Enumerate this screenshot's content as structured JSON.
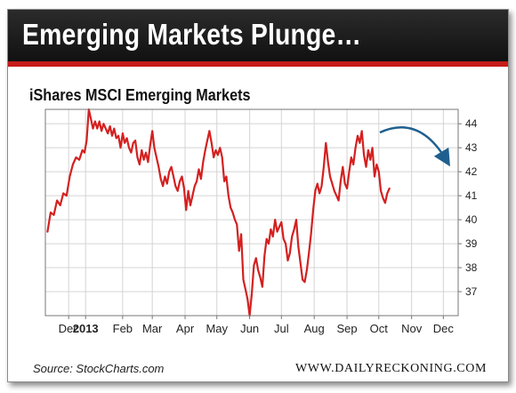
{
  "banner": {
    "title": "Emerging Markets Plunge…"
  },
  "chart_data": {
    "type": "line",
    "title": "iShares MSCI Emerging Markets",
    "x_tick_labels": [
      "Dec",
      "2013",
      "Feb",
      "Mar",
      "Apr",
      "May",
      "Jun",
      "Jul",
      "Aug",
      "Sep",
      "Oct",
      "Nov",
      "Dec"
    ],
    "x_tick_days": [
      -16,
      0,
      35,
      63,
      94,
      124,
      155,
      185,
      216,
      247,
      277,
      308,
      338
    ],
    "bold_tick_label": "2013",
    "y_ticks": [
      37,
      38,
      39,
      40,
      41,
      42,
      43,
      44
    ],
    "ylim": [
      36,
      44.6
    ],
    "xlim": [
      -38,
      352
    ],
    "grid": true,
    "series": [
      {
        "color": "#d42020",
        "points": [
          [
            -36,
            39.5
          ],
          [
            -33,
            40.3
          ],
          [
            -30,
            40.2
          ],
          [
            -27,
            40.8
          ],
          [
            -24,
            40.6
          ],
          [
            -21,
            41.1
          ],
          [
            -18,
            41.0
          ],
          [
            -15,
            41.8
          ],
          [
            -12,
            42.3
          ],
          [
            -9,
            42.6
          ],
          [
            -6,
            42.5
          ],
          [
            -3,
            42.9
          ],
          [
            -1,
            42.8
          ],
          [
            1,
            43.3
          ],
          [
            3,
            44.6
          ],
          [
            5,
            44.2
          ],
          [
            7,
            43.8
          ],
          [
            9,
            44.1
          ],
          [
            11,
            43.8
          ],
          [
            13,
            44.1
          ],
          [
            15,
            43.7
          ],
          [
            17,
            44.0
          ],
          [
            19,
            43.8
          ],
          [
            21,
            43.6
          ],
          [
            23,
            43.9
          ],
          [
            25,
            43.5
          ],
          [
            27,
            43.8
          ],
          [
            29,
            43.4
          ],
          [
            31,
            43.5
          ],
          [
            33,
            43.0
          ],
          [
            35,
            43.6
          ],
          [
            37,
            43.2
          ],
          [
            39,
            43.4
          ],
          [
            41,
            43.0
          ],
          [
            43,
            42.8
          ],
          [
            45,
            43.2
          ],
          [
            47,
            43.3
          ],
          [
            49,
            42.6
          ],
          [
            51,
            42.3
          ],
          [
            53,
            42.9
          ],
          [
            55,
            42.5
          ],
          [
            57,
            42.8
          ],
          [
            59,
            42.4
          ],
          [
            61,
            43.1
          ],
          [
            63,
            43.7
          ],
          [
            65,
            43.0
          ],
          [
            67,
            42.6
          ],
          [
            69,
            42.2
          ],
          [
            71,
            41.7
          ],
          [
            73,
            41.4
          ],
          [
            75,
            41.8
          ],
          [
            77,
            41.5
          ],
          [
            79,
            42.0
          ],
          [
            81,
            42.2
          ],
          [
            83,
            41.8
          ],
          [
            85,
            41.4
          ],
          [
            87,
            41.2
          ],
          [
            89,
            41.6
          ],
          [
            91,
            41.8
          ],
          [
            93,
            41.3
          ],
          [
            95,
            40.4
          ],
          [
            97,
            41.2
          ],
          [
            99,
            40.6
          ],
          [
            101,
            41.0
          ],
          [
            103,
            41.4
          ],
          [
            105,
            41.6
          ],
          [
            107,
            42.1
          ],
          [
            109,
            41.7
          ],
          [
            111,
            42.4
          ],
          [
            113,
            42.9
          ],
          [
            115,
            43.3
          ],
          [
            117,
            43.7
          ],
          [
            119,
            43.2
          ],
          [
            121,
            42.6
          ],
          [
            123,
            42.9
          ],
          [
            125,
            42.7
          ],
          [
            127,
            43.0
          ],
          [
            129,
            42.6
          ],
          [
            131,
            41.6
          ],
          [
            133,
            41.8
          ],
          [
            135,
            41.0
          ],
          [
            137,
            40.5
          ],
          [
            139,
            40.3
          ],
          [
            141,
            40.0
          ],
          [
            143,
            39.8
          ],
          [
            145,
            38.7
          ],
          [
            147,
            39.4
          ],
          [
            149,
            37.5
          ],
          [
            151,
            37.1
          ],
          [
            153,
            36.7
          ],
          [
            155,
            36.0
          ],
          [
            157,
            36.9
          ],
          [
            159,
            38.1
          ],
          [
            161,
            38.4
          ],
          [
            163,
            37.9
          ],
          [
            165,
            37.6
          ],
          [
            167,
            37.2
          ],
          [
            169,
            38.5
          ],
          [
            171,
            39.2
          ],
          [
            173,
            39.0
          ],
          [
            175,
            39.6
          ],
          [
            177,
            39.3
          ],
          [
            179,
            40.0
          ],
          [
            181,
            39.5
          ],
          [
            183,
            39.7
          ],
          [
            185,
            39.9
          ],
          [
            187,
            39.2
          ],
          [
            189,
            39.0
          ],
          [
            191,
            38.3
          ],
          [
            193,
            38.6
          ],
          [
            195,
            39.3
          ],
          [
            197,
            39.6
          ],
          [
            199,
            40.0
          ],
          [
            201,
            38.9
          ],
          [
            203,
            38.2
          ],
          [
            205,
            37.5
          ],
          [
            207,
            37.4
          ],
          [
            209,
            37.9
          ],
          [
            211,
            38.6
          ],
          [
            213,
            39.4
          ],
          [
            215,
            40.4
          ],
          [
            217,
            41.2
          ],
          [
            219,
            41.5
          ],
          [
            221,
            41.1
          ],
          [
            223,
            41.4
          ],
          [
            225,
            42.2
          ],
          [
            227,
            43.2
          ],
          [
            229,
            42.4
          ],
          [
            231,
            41.8
          ],
          [
            233,
            41.5
          ],
          [
            235,
            41.2
          ],
          [
            237,
            41.0
          ],
          [
            239,
            40.8
          ],
          [
            241,
            41.6
          ],
          [
            243,
            42.2
          ],
          [
            245,
            41.5
          ],
          [
            247,
            41.3
          ],
          [
            249,
            42.0
          ],
          [
            251,
            42.6
          ],
          [
            253,
            42.3
          ],
          [
            255,
            43.0
          ],
          [
            257,
            43.5
          ],
          [
            259,
            43.2
          ],
          [
            261,
            43.7
          ],
          [
            263,
            42.7
          ],
          [
            265,
            42.2
          ],
          [
            267,
            42.9
          ],
          [
            269,
            42.5
          ],
          [
            271,
            43.0
          ],
          [
            273,
            41.8
          ],
          [
            275,
            42.3
          ],
          [
            277,
            42.0
          ],
          [
            279,
            41.2
          ],
          [
            281,
            40.9
          ],
          [
            283,
            40.7
          ],
          [
            285,
            41.1
          ],
          [
            287,
            41.3
          ]
        ]
      }
    ],
    "annotation": {
      "type": "curved-arrow",
      "color": "#1f5f8f",
      "points_to": "downturn"
    }
  },
  "footer": {
    "source": "Source: StockCharts.com",
    "brand": "WWW.DAILYRECKONING.COM"
  }
}
